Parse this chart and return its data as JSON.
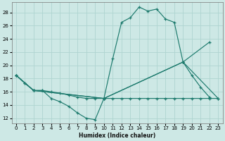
{
  "xlabel": "Humidex (Indice chaleur)",
  "bg_color": "#cde8e5",
  "grid_color": "#afd4d0",
  "line_color": "#1e7b6e",
  "x_ticks": [
    0,
    1,
    2,
    3,
    4,
    5,
    6,
    7,
    8,
    9,
    10,
    11,
    12,
    13,
    14,
    15,
    16,
    17,
    18,
    19,
    20,
    21,
    22,
    23
  ],
  "y_ticks": [
    12,
    14,
    16,
    18,
    20,
    22,
    24,
    26,
    28
  ],
  "ylim": [
    11.2,
    29.5
  ],
  "xlim": [
    -0.5,
    23.5
  ],
  "series1_x": [
    0,
    1,
    2,
    3,
    4,
    5,
    6,
    7,
    8,
    9,
    10,
    11,
    12,
    13,
    14,
    15,
    16,
    17,
    18,
    19,
    20,
    21,
    22
  ],
  "series1_y": [
    18.5,
    17.3,
    16.2,
    16.2,
    15.0,
    14.5,
    13.8,
    12.8,
    12.0,
    11.8,
    15.0,
    21.0,
    26.5,
    27.2,
    28.8,
    28.2,
    28.5,
    27.0,
    26.5,
    20.5,
    18.5,
    16.7,
    15.2
  ],
  "series2_x": [
    0,
    2,
    10,
    19,
    22
  ],
  "series2_y": [
    18.5,
    16.2,
    15.0,
    20.5,
    23.5
  ],
  "series3_x": [
    0,
    2,
    10,
    19,
    23
  ],
  "series3_y": [
    18.5,
    16.2,
    15.0,
    20.5,
    15.0
  ],
  "series4_x": [
    0,
    1,
    2,
    3,
    4,
    5,
    6,
    7,
    8,
    9,
    10,
    11,
    12,
    13,
    14,
    15,
    16,
    17,
    18,
    19,
    20,
    21,
    22,
    23
  ],
  "series4_y": [
    18.5,
    17.3,
    16.2,
    16.2,
    16.0,
    15.8,
    15.5,
    15.2,
    15.0,
    15.0,
    15.0,
    15.0,
    15.0,
    15.0,
    15.0,
    15.0,
    15.0,
    15.0,
    15.0,
    15.0,
    15.0,
    15.0,
    15.0,
    15.0
  ]
}
